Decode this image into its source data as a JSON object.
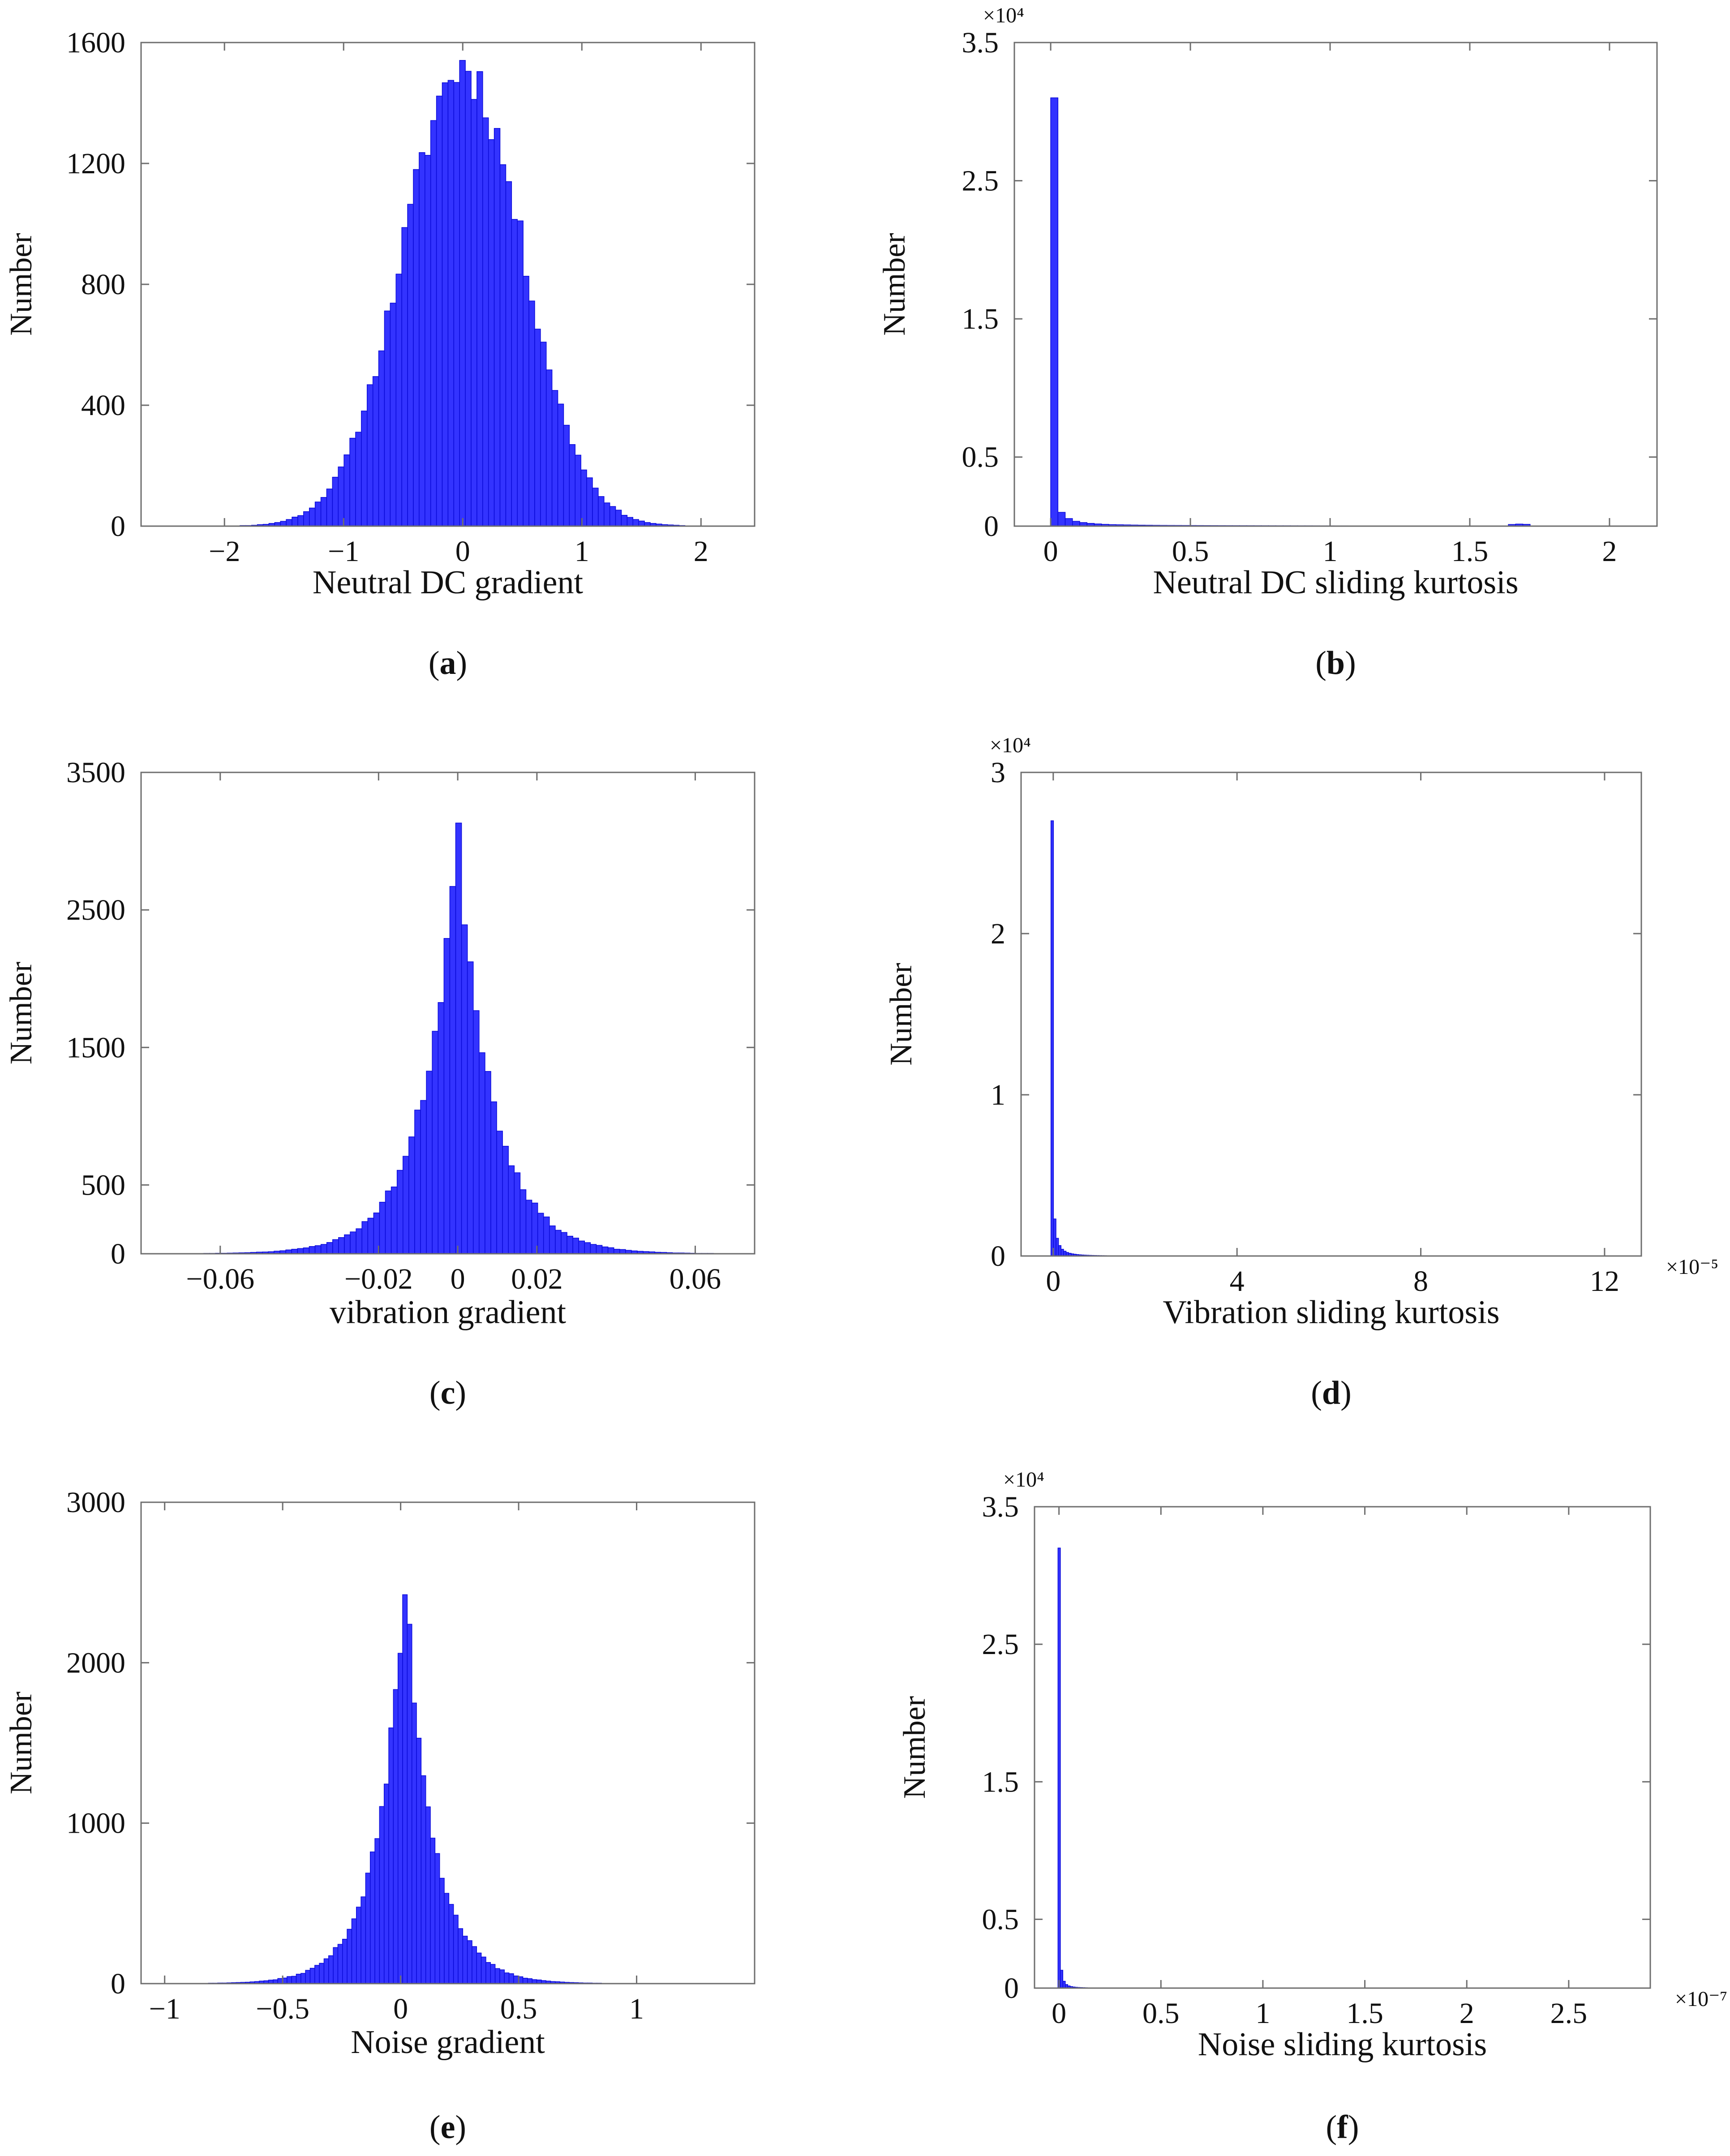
{
  "figure": {
    "colors": {
      "bar_fill": "#3333ff",
      "bar_edge": "#0a0ad8",
      "axis": "#6e6e6e",
      "text": "#111111"
    }
  },
  "chart_data": [
    {
      "id": "a",
      "type": "bar",
      "panel_label": "a",
      "title": "",
      "xlabel": "Neutral  DC gradient",
      "ylabel": "Number",
      "xlim": [
        -2.7,
        2.45
      ],
      "ylim": [
        0,
        1600
      ],
      "xticks": [
        -2,
        -1,
        0,
        1,
        2
      ],
      "xtick_labels": [
        "−2",
        "−1",
        "0",
        "1",
        "2"
      ],
      "yticks": [
        0,
        400,
        800,
        1200,
        1600
      ],
      "ytick_labels": [
        "0",
        "400",
        "800",
        "1200",
        "1600"
      ],
      "multiplier": "",
      "xmultiplier": "",
      "gaussian": {
        "mu": 0.0,
        "sigma": 0.5,
        "peak": 1520,
        "x_min": -2.5,
        "x_max": 2.35,
        "bins": 100,
        "seed": 11
      }
    },
    {
      "id": "b",
      "type": "bar",
      "panel_label": "b",
      "title": "",
      "xlabel": "Neutral  DC sliding kurtosis",
      "ylabel": "Number",
      "xlim": [
        -0.13,
        2.17
      ],
      "ylim": [
        0,
        35000
      ],
      "xticks": [
        0,
        0.5,
        1,
        1.5,
        2
      ],
      "xtick_labels": [
        "0",
        "0.5",
        "1",
        "1.5",
        "2"
      ],
      "yticks": [
        0,
        5000,
        15000,
        25000,
        35000
      ],
      "ytick_labels": [
        "0",
        "0.5",
        "1.5",
        "2.5",
        "3.5"
      ],
      "multiplier": "×10⁴",
      "xmultiplier": "",
      "bars": {
        "x_start": 0.0,
        "bin_width": 0.026,
        "bins": 80,
        "values": [
          31000,
          1000,
          550,
          350,
          260,
          200,
          160,
          130,
          110,
          100,
          90,
          80,
          72,
          66,
          60,
          55,
          52,
          50,
          48,
          46,
          44,
          42,
          40,
          38,
          37,
          36,
          35,
          34,
          33,
          32,
          31,
          30,
          30,
          29,
          28,
          28,
          27,
          26,
          26,
          25,
          25,
          24,
          24,
          23,
          23,
          22,
          22,
          21,
          21,
          20,
          20,
          20,
          19,
          19,
          18,
          18,
          18,
          17,
          17,
          17,
          16,
          16,
          16,
          120,
          150,
          130,
          14,
          14,
          14,
          13,
          13,
          13,
          12,
          12,
          12,
          11,
          11,
          11,
          10,
          10
        ]
      }
    },
    {
      "id": "c",
      "type": "bar",
      "panel_label": "c",
      "title": "",
      "xlabel": "vibration gradient",
      "ylabel": "Number",
      "xlim": [
        -0.08,
        0.075
      ],
      "ylim": [
        0,
        3500
      ],
      "xticks": [
        -0.06,
        -0.02,
        0,
        0.02,
        0.06
      ],
      "xtick_labels": [
        "−0.06",
        "−0.02",
        "0",
        "0.02",
        "0.06"
      ],
      "yticks": [
        0,
        500,
        1500,
        2500,
        3500
      ],
      "ytick_labels": [
        "0",
        "500",
        "1500",
        "2500",
        "3500"
      ],
      "multiplier": "",
      "xmultiplier": "",
      "laplace": {
        "mu": 0.0,
        "scale": 0.009,
        "peak": 3050,
        "x_min": -0.076,
        "x_max": 0.072,
        "bins": 100,
        "seed": 23
      }
    },
    {
      "id": "d",
      "type": "bar",
      "panel_label": "d",
      "title": "",
      "xlabel": "Vibration sliding kurtosis",
      "ylabel": "Number",
      "xlim": [
        -7e-06,
        0.000128
      ],
      "ylim": [
        0,
        30000
      ],
      "xticks": [
        0,
        4e-05,
        8e-05,
        0.00012
      ],
      "xtick_labels": [
        "0",
        "4",
        "8",
        "12"
      ],
      "yticks": [
        0,
        10000,
        20000,
        30000
      ],
      "ytick_labels": [
        "0",
        "1",
        "2",
        "3"
      ],
      "multiplier": "×10⁴",
      "xmultiplier": "×10⁻⁵",
      "bars": {
        "x_start": -5e-07,
        "bin_width": 5.5e-07,
        "bins": 60,
        "values": [
          27000,
          2300,
          1100,
          650,
          420,
          300,
          220,
          170,
          135,
          110,
          90,
          75,
          64,
          55,
          48,
          42,
          37,
          33,
          30,
          27,
          25,
          23,
          21,
          19,
          18,
          17,
          16,
          15,
          14,
          13,
          12,
          12,
          11,
          11,
          10,
          10,
          9,
          9,
          8,
          8,
          8,
          7,
          7,
          7,
          6,
          6,
          6,
          6,
          5,
          5,
          5,
          5,
          5,
          4,
          4,
          4,
          4,
          4,
          4,
          3
        ]
      }
    },
    {
      "id": "e",
      "type": "bar",
      "panel_label": "e",
      "title": "",
      "xlabel": "Noise gradient",
      "ylabel": "Number",
      "xlim": [
        -1.1,
        1.5
      ],
      "ylim": [
        0,
        3000
      ],
      "xticks": [
        -1,
        -0.5,
        0,
        0.5,
        1
      ],
      "xtick_labels": [
        "−1",
        "−0.5",
        "0",
        "0.5",
        "1"
      ],
      "yticks": [
        0,
        1000,
        2000,
        3000
      ],
      "ytick_labels": [
        "0",
        "1000",
        "2000",
        "3000"
      ],
      "multiplier": "",
      "xmultiplier": "",
      "laplace": {
        "mu": 0.02,
        "scale": 0.12,
        "peak": 2500,
        "x_min": -1.05,
        "x_max": 1.4,
        "bins": 125,
        "seed": 37
      }
    },
    {
      "id": "f",
      "type": "bar",
      "panel_label": "f",
      "title": "",
      "xlabel": "Noise sliding kurtosis",
      "ylabel": "Number",
      "xlim": [
        -1.2e-08,
        2.9e-07
      ],
      "ylim": [
        0,
        35000
      ],
      "xticks": [
        0,
        5e-08,
        1e-07,
        1.5e-07,
        2e-07,
        2.5e-07
      ],
      "xtick_labels": [
        "0",
        "0.5",
        "1",
        "1.5",
        "2",
        "2.5"
      ],
      "yticks": [
        0,
        5000,
        15000,
        25000,
        35000
      ],
      "ytick_labels": [
        "0",
        "0.5",
        "1.5",
        "2.5",
        "3.5"
      ],
      "multiplier": "×10⁴",
      "xmultiplier": "×10⁻⁷",
      "bars": {
        "x_start": -5e-10,
        "bin_width": 1.2e-09,
        "bins": 40,
        "values": [
          32000,
          1300,
          500,
          260,
          160,
          110,
          80,
          60,
          48,
          40,
          34,
          29,
          25,
          22,
          19,
          17,
          15,
          13,
          12,
          11,
          10,
          9,
          8,
          8,
          7,
          7,
          6,
          6,
          5,
          5,
          5,
          4,
          4,
          4,
          4,
          3,
          3,
          3,
          3,
          3
        ]
      }
    }
  ]
}
